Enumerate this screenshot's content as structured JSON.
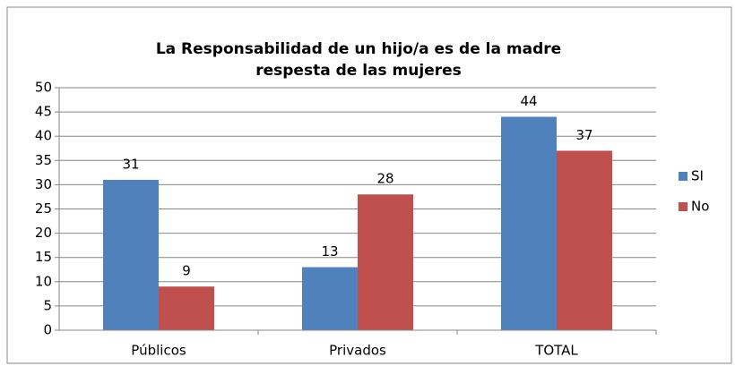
{
  "chart_data": {
    "type": "bar",
    "title": [
      "La Responsabilidad de un hijo/a es de la madre",
      "respesta de las mujeres"
    ],
    "categories": [
      "Públicos",
      "Privados",
      "TOTAL"
    ],
    "series": [
      {
        "name": "SI",
        "color": "#4f81bd",
        "values": [
          31,
          13,
          44
        ]
      },
      {
        "name": "No",
        "color": "#c0504d",
        "values": [
          9,
          28,
          37
        ]
      }
    ],
    "ylim": [
      0,
      50
    ],
    "yticks": [
      0,
      5,
      10,
      15,
      20,
      25,
      30,
      35,
      40,
      45,
      50
    ],
    "grid": true,
    "legend": "right"
  }
}
